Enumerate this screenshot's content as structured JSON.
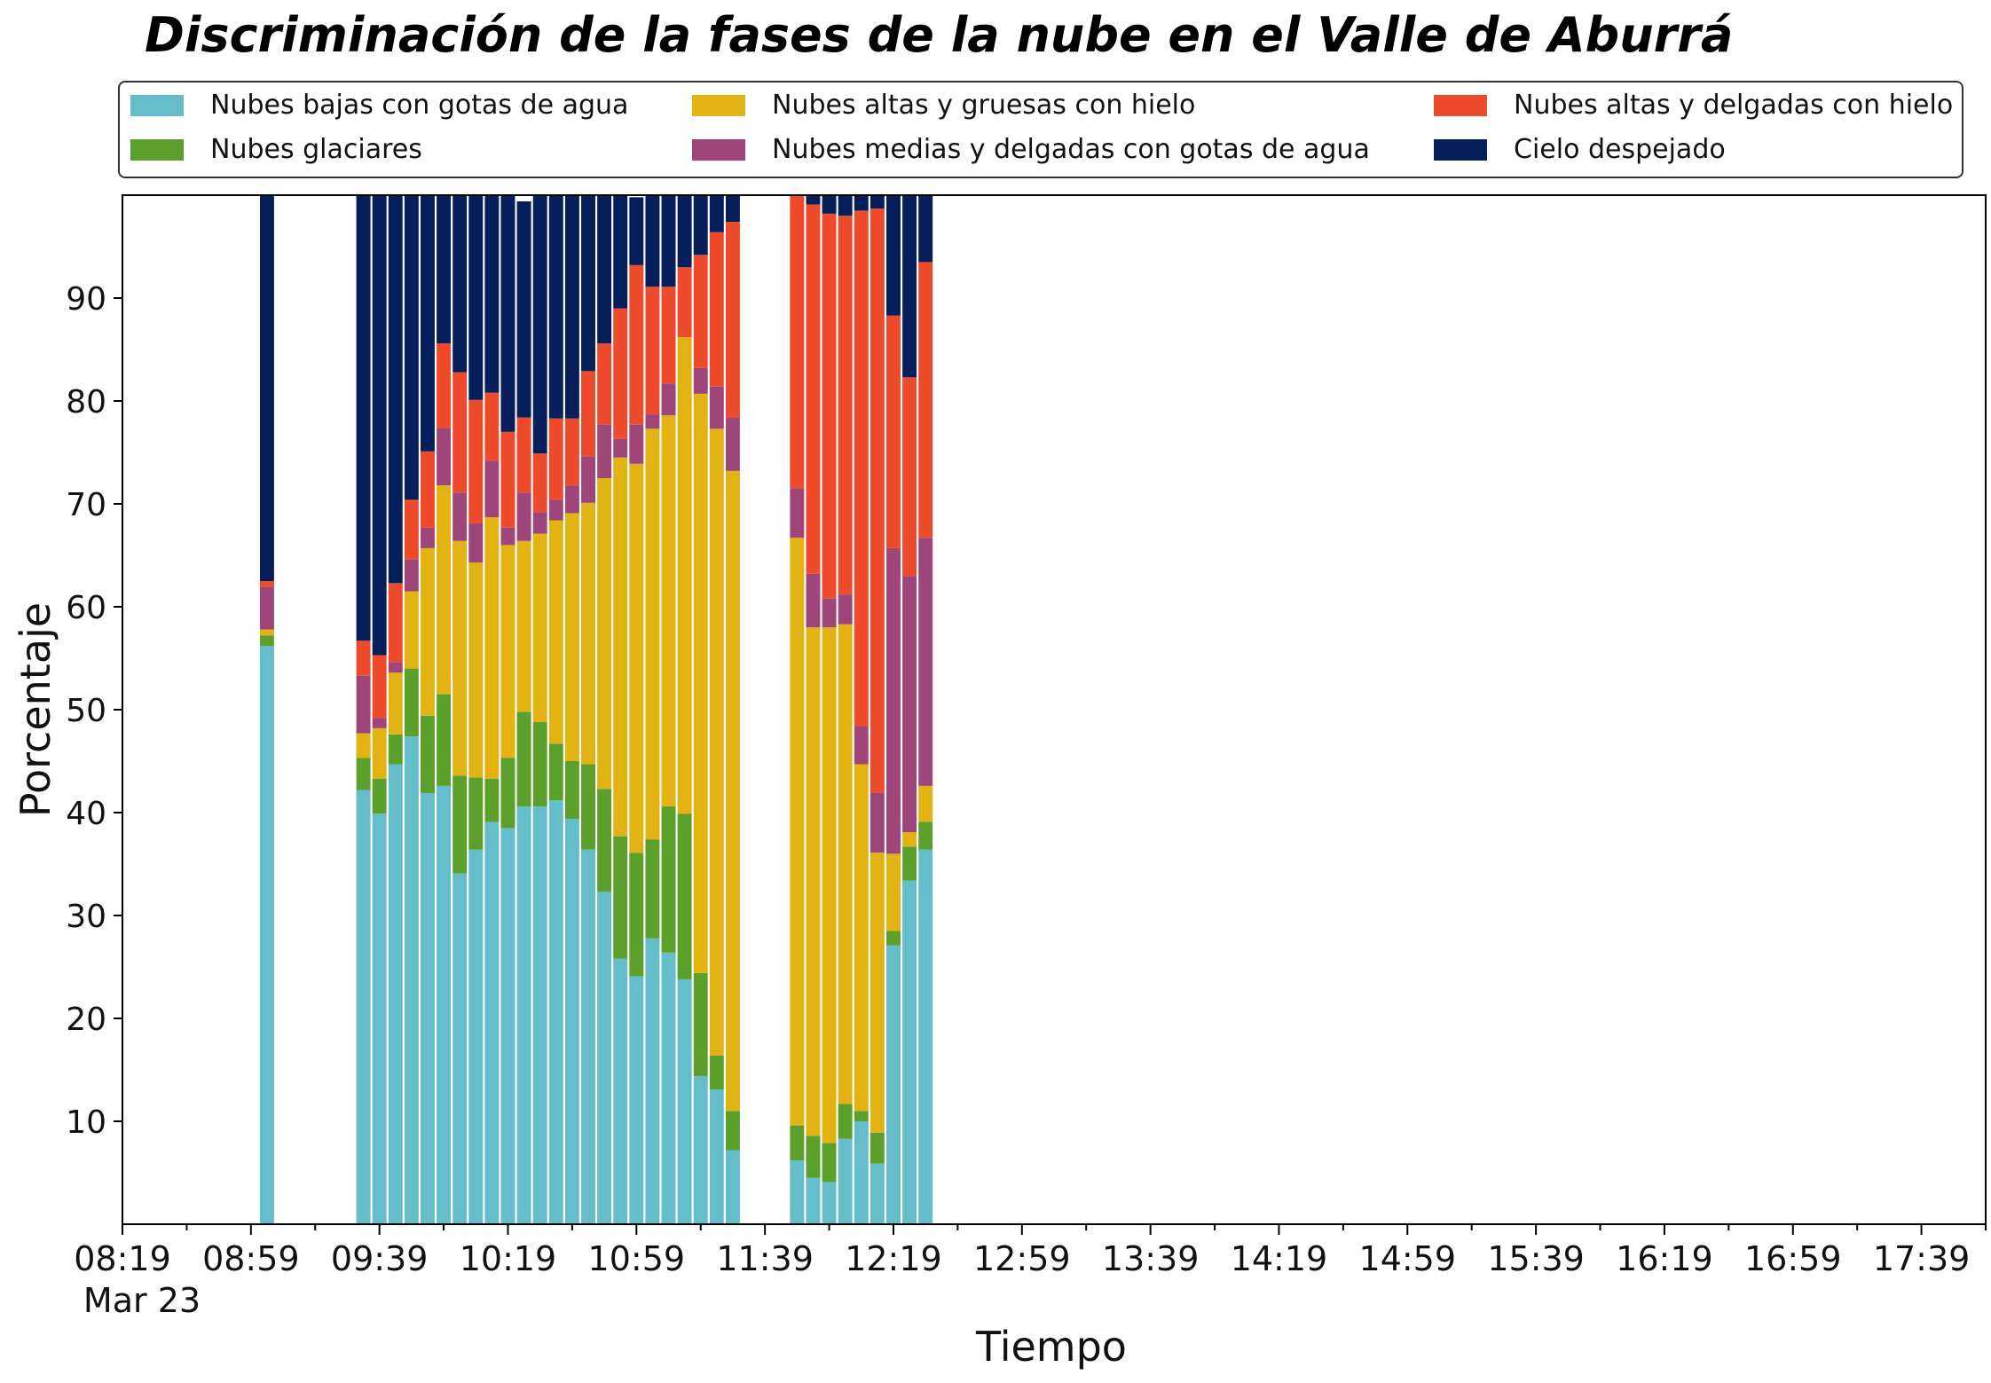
{
  "title": "Discriminación de la fases de la nube en el Valle de Aburrá",
  "chart_data": {
    "type": "bar",
    "stacked": true,
    "xlabel": "Tiempo",
    "ylabel": "Porcentaje",
    "ylim": [
      0,
      100
    ],
    "yticks": [
      10,
      20,
      30,
      40,
      50,
      60,
      70,
      80,
      90
    ],
    "x_tick_labels": [
      "08:19",
      "08:59",
      "09:39",
      "10:19",
      "10:59",
      "11:39",
      "12:19",
      "12:59",
      "13:39",
      "14:19",
      "14:59",
      "15:39",
      "16:19",
      "16:59",
      "17:39"
    ],
    "x_date_label": "Mar 23",
    "x_range_minutes": [
      "08:19",
      "17:59"
    ],
    "bar_width_minutes": 4.4,
    "legend_position": "top",
    "grid": false,
    "categories": [
      "09:04",
      "09:34",
      "09:39",
      "09:44",
      "09:49",
      "09:54",
      "09:59",
      "10:04",
      "10:09",
      "10:14",
      "10:19",
      "10:24",
      "10:29",
      "10:34",
      "10:39",
      "10:44",
      "10:49",
      "10:54",
      "10:59",
      "11:04",
      "11:09",
      "11:14",
      "11:19",
      "11:24",
      "11:29",
      "11:49",
      "11:54",
      "11:59",
      "12:04",
      "12:09",
      "12:14",
      "12:19",
      "12:24",
      "12:29",
      "12:34",
      "13:24",
      "13:34",
      "13:54"
    ],
    "series": [
      {
        "name": "Nubes bajas con gotas de agua",
        "color": "#64bdc8",
        "values": [
          56.2,
          42.2,
          39.9,
          44.7,
          47.4,
          41.9,
          42.6,
          34.1,
          36.4,
          39.1,
          38.5,
          40.6,
          40.6,
          41.2,
          39.4,
          36.4,
          32.3,
          25.8,
          24.1,
          27.8,
          26.4,
          23.8,
          14.4,
          13.1,
          7.2,
          6.2,
          4.5,
          4.1,
          8.3,
          10.0,
          5.9,
          27.1,
          33.4,
          36.4,
          0,
          0,
          0,
          0
        ]
      },
      {
        "name": "Nubes glaciares",
        "color": "#5ca02c",
        "values": [
          1.0,
          3.1,
          3.4,
          2.9,
          6.6,
          7.5,
          8.9,
          9.5,
          7.0,
          4.2,
          6.8,
          9.2,
          8.2,
          5.5,
          5.6,
          8.3,
          10.0,
          11.9,
          12.0,
          9.6,
          14.2,
          16.1,
          10.0,
          3.3,
          3.8,
          3.4,
          4.1,
          3.8,
          3.4,
          1.0,
          3.0,
          1.4,
          3.3,
          2.7,
          0,
          0,
          0,
          0
        ]
      },
      {
        "name": "Nubes altas y gruesas con hielo",
        "color": "#e3b314",
        "values": [
          0.6,
          2.4,
          4.9,
          6.0,
          7.5,
          16.3,
          20.3,
          22.8,
          20.9,
          25.4,
          20.7,
          16.6,
          18.3,
          21.7,
          24.1,
          25.4,
          30.2,
          36.8,
          37.8,
          39.9,
          38.0,
          46.3,
          56.3,
          60.9,
          62.2,
          57.1,
          49.4,
          50.1,
          46.6,
          33.7,
          27.2,
          7.5,
          1.4,
          3.5,
          0,
          0,
          0,
          0
        ]
      },
      {
        "name": "Nubes medias y delgadas con gotas de agua",
        "color": "#a0457a",
        "values": [
          4.1,
          5.6,
          1.0,
          1.0,
          3.1,
          2.0,
          5.6,
          4.7,
          3.8,
          5.5,
          1.7,
          4.7,
          2.1,
          2.0,
          2.7,
          4.5,
          5.2,
          1.8,
          3.8,
          1.4,
          3.1,
          0,
          2.5,
          4.1,
          5.2,
          4.8,
          5.2,
          2.8,
          2.9,
          3.7,
          5.8,
          29.7,
          24.9,
          24.1,
          0,
          0,
          0,
          0
        ]
      },
      {
        "name": "Nubes altas y delgadas con hielo",
        "color": "#ee4a2c",
        "values": [
          0.6,
          3.4,
          6.1,
          7.7,
          5.8,
          7.4,
          8.2,
          11.7,
          12.0,
          6.6,
          9.3,
          7.3,
          5.7,
          7.9,
          6.5,
          8.3,
          7.9,
          12.7,
          15.5,
          12.4,
          9.4,
          6.8,
          11.0,
          15.0,
          19.0,
          28.5,
          35.9,
          37.4,
          36.8,
          50.1,
          56.8,
          22.6,
          19.3,
          26.8,
          0,
          0,
          0,
          0
        ]
      },
      {
        "name": "Cielo despejado",
        "color": "#061f5b",
        "values": [
          37.5,
          43.3,
          44.7,
          37.7,
          29.6,
          24.9,
          14.4,
          17.2,
          19.9,
          19.2,
          23.0,
          21.0,
          25.1,
          22.7,
          21.7,
          17.1,
          14.4,
          11.0,
          6.6,
          8.9,
          8.9,
          7.0,
          5.8,
          3.6,
          2.6,
          0,
          0.9,
          1.8,
          2.0,
          1.5,
          1.3,
          11.7,
          17.9,
          6.5,
          0,
          0,
          0,
          0
        ]
      }
    ]
  }
}
